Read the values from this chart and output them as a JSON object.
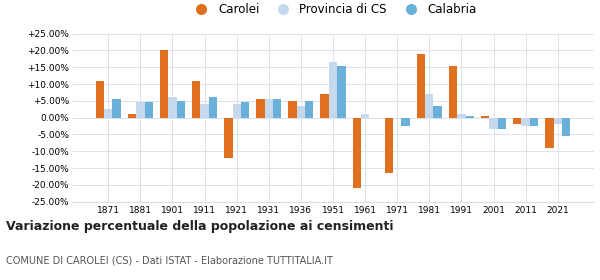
{
  "years": [
    1871,
    1881,
    1901,
    1911,
    1921,
    1931,
    1936,
    1951,
    1961,
    1971,
    1981,
    1991,
    2001,
    2011,
    2021
  ],
  "carolei": [
    11.0,
    1.0,
    20.0,
    11.0,
    -12.0,
    5.5,
    5.0,
    7.0,
    -21.0,
    -16.5,
    19.0,
    15.5,
    0.5,
    -2.0,
    -9.0
  ],
  "provincia": [
    2.5,
    4.5,
    6.0,
    4.0,
    4.0,
    5.5,
    3.5,
    16.5,
    1.0,
    0.0,
    7.0,
    1.0,
    -3.5,
    -2.5,
    -2.0
  ],
  "calabria": [
    5.5,
    4.5,
    5.0,
    6.0,
    4.5,
    5.5,
    5.0,
    15.5,
    0.0,
    -2.5,
    3.5,
    0.5,
    -3.5,
    -2.5,
    -5.5
  ],
  "color_carolei": "#e07020",
  "color_provincia": "#c5d8ee",
  "color_calabria": "#6ab0d8",
  "title": "Variazione percentuale della popolazione ai censimenti",
  "subtitle": "COMUNE DI CAROLEI (CS) - Dati ISTAT - Elaborazione TUTTITALIA.IT",
  "ylim": [
    -25,
    25
  ],
  "yticks": [
    -25,
    -20,
    -15,
    -10,
    -5,
    0,
    5,
    10,
    15,
    20,
    25
  ],
  "bg_color": "#ffffff",
  "grid_color": "#d8dce8"
}
